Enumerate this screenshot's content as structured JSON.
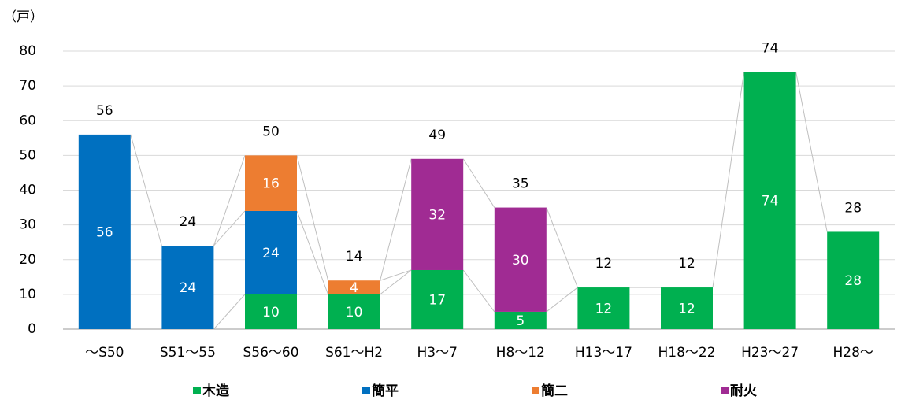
{
  "chart_data": {
    "type": "stacked_bar",
    "unit_label": "（戸）",
    "categories": [
      "～S50",
      "S51～55",
      "S56～60",
      "S61～H2",
      "H3～7",
      "H8～12",
      "H13～17",
      "H18～22",
      "H23～27",
      "H28～"
    ],
    "series": [
      {
        "name": "木造",
        "color": "#00b050",
        "values": [
          null,
          null,
          10,
          10,
          17,
          5,
          12,
          12,
          74,
          28
        ]
      },
      {
        "name": "簡平",
        "color": "#0070c0",
        "values": [
          56,
          24,
          24,
          null,
          null,
          null,
          null,
          null,
          null,
          null
        ]
      },
      {
        "name": "簡二",
        "color": "#ed7d31",
        "values": [
          null,
          null,
          16,
          4,
          null,
          null,
          null,
          null,
          null,
          null
        ]
      },
      {
        "name": "耐火",
        "color": "#a02b93",
        "values": [
          null,
          null,
          null,
          null,
          32,
          30,
          null,
          null,
          null,
          null
        ]
      }
    ],
    "totals": [
      56,
      24,
      50,
      14,
      49,
      35,
      12,
      12,
      74,
      28
    ],
    "ylim": [
      0,
      80
    ],
    "yticks": [
      0,
      10,
      20,
      30,
      40,
      50,
      60,
      70,
      80
    ],
    "grid": true,
    "legend": "bottom"
  }
}
